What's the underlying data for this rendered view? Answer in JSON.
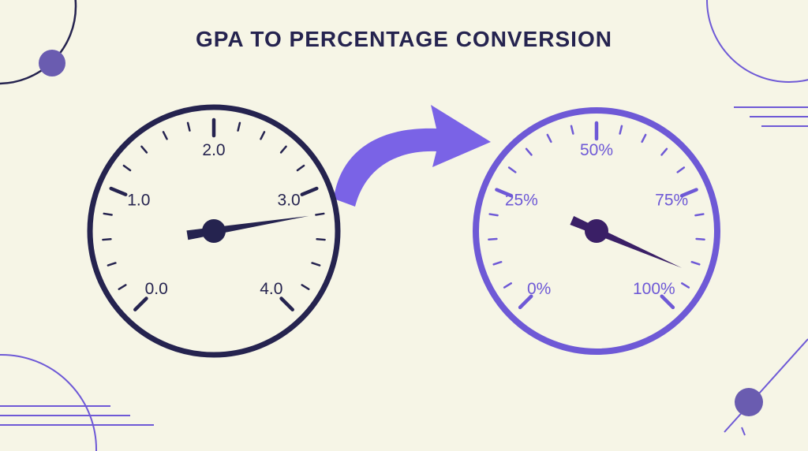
{
  "title": "GPA TO PERCENTAGE CONVERSION",
  "colors": {
    "background": "#f6f5e6",
    "gpa_gauge": "#25234f",
    "percent_gauge": "#6e59d6",
    "arrow": "#7a63e6",
    "decor": "#6e59d6"
  },
  "gauges": [
    {
      "name": "gpa-gauge",
      "labels": [
        "0.0",
        "1.0",
        "2.0",
        "3.0",
        "4.0"
      ],
      "min": 0,
      "max": 4,
      "value": 3.2
    },
    {
      "name": "percent-gauge",
      "labels": [
        "0%",
        "25%",
        "50%",
        "75%",
        "100%"
      ],
      "min": 0,
      "max": 100,
      "value": 92
    }
  ],
  "icons": [
    "arrow-right-icon",
    "circle-decor-icon",
    "dot-decor-icon",
    "lines-decor-icon"
  ]
}
